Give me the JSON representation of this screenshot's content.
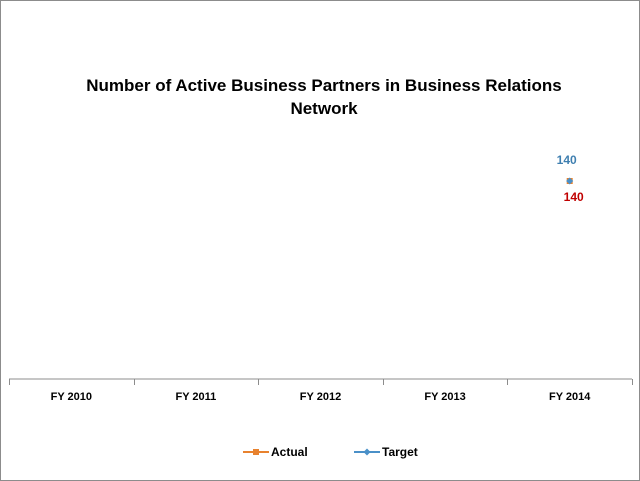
{
  "chart_data": {
    "type": "line",
    "title": "Number of Active Business Partners in Business Relations Network",
    "categories": [
      "FY 2010",
      "FY 2011",
      "FY 2012",
      "FY 2013",
      "FY 2014"
    ],
    "series": [
      {
        "name": "Actual",
        "values": [
          null,
          null,
          null,
          null,
          140
        ],
        "color": "#e8822e",
        "marker": "square",
        "label_color": "#c00000",
        "label_position": "below"
      },
      {
        "name": "Target",
        "values": [
          null,
          null,
          null,
          null,
          140
        ],
        "color": "#4a90c8",
        "marker": "diamond",
        "label_color": "#3f7fb0",
        "label_position": "above"
      }
    ],
    "grid": false,
    "legend_position": "bottom"
  }
}
